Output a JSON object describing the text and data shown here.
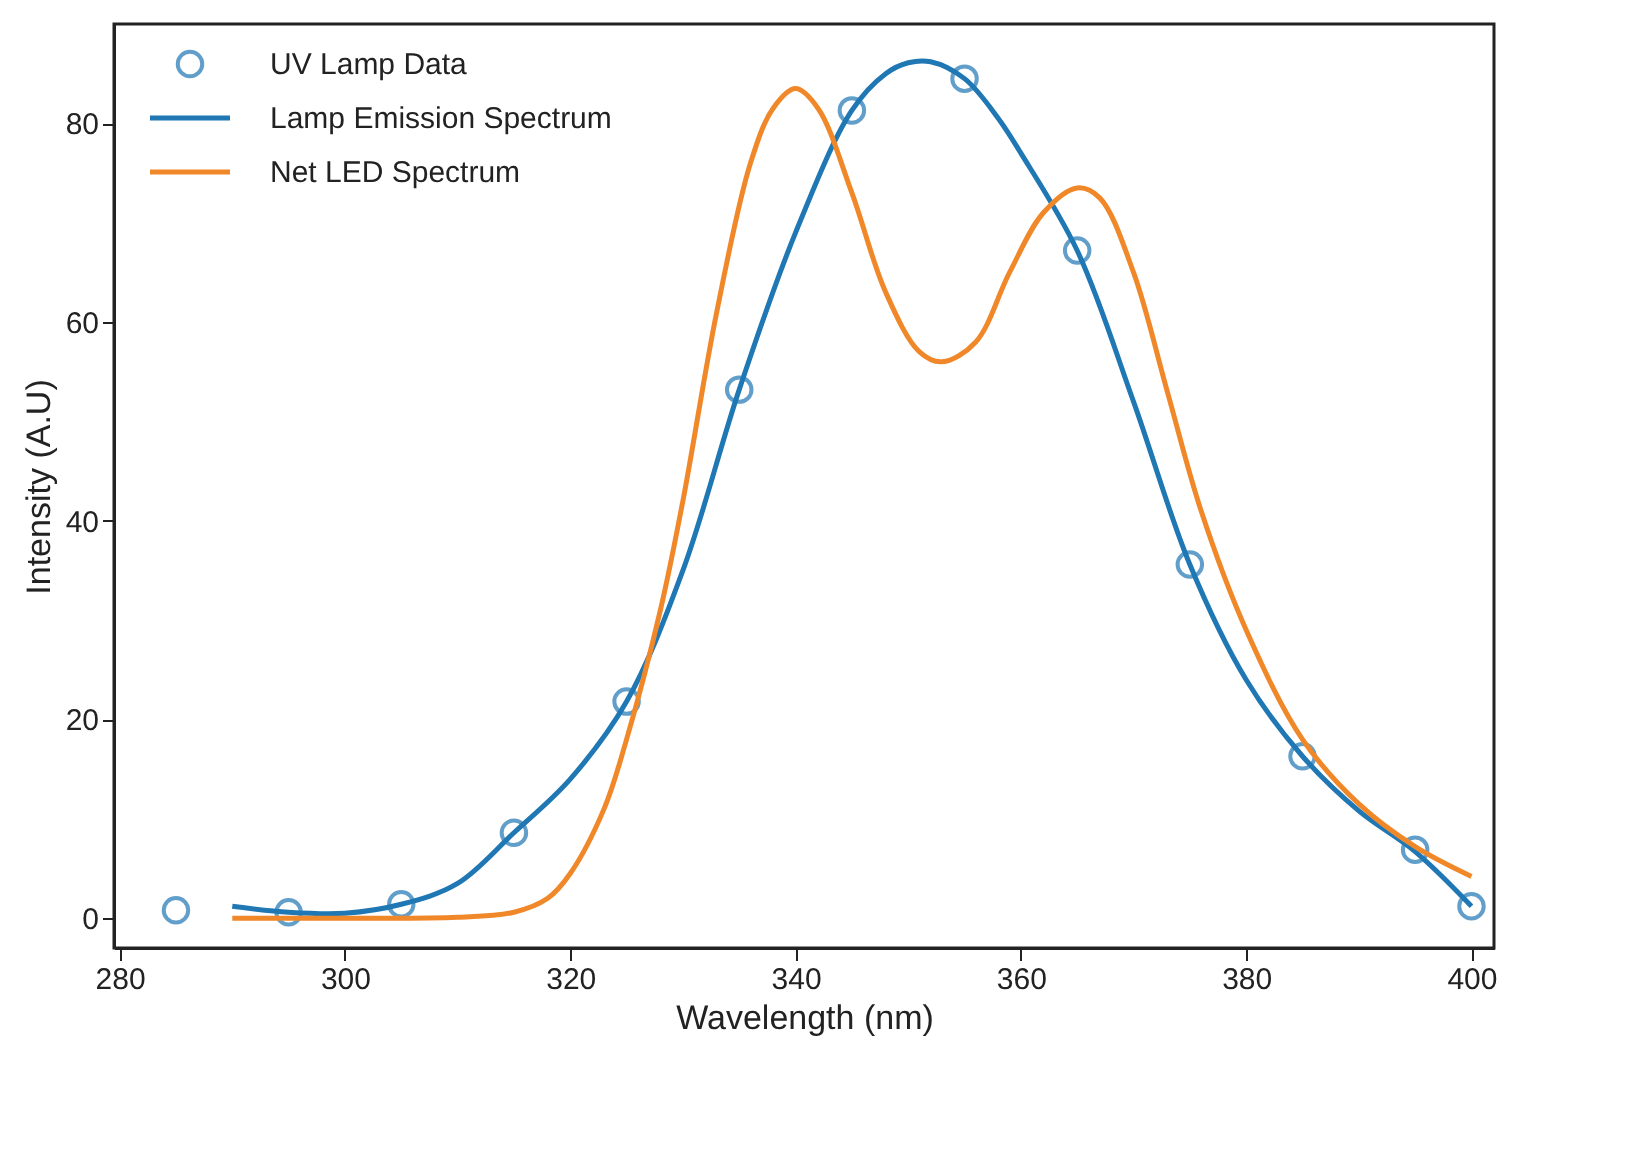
{
  "chart_data": {
    "type": "line",
    "xlabel": "Wavelength (nm)",
    "ylabel": "Intensity (A.U)",
    "xlim": [
      279.5,
      402
    ],
    "xticks": [
      280,
      300,
      320,
      340,
      360,
      380,
      400
    ],
    "ylim": [
      -3,
      90
    ],
    "yticks": [
      0,
      20,
      40,
      60,
      80
    ],
    "grid": false,
    "legend": "top left",
    "line_style": "solid",
    "series": [
      {
        "name": "UV Lamp Data",
        "type": "scatter",
        "marker": "circle",
        "color": "#1f77b4",
        "x": [
          285,
          295,
          305,
          315,
          325,
          335,
          345,
          355,
          365,
          375,
          385,
          395,
          400
        ],
        "values": [
          0.8,
          0.6,
          1.4,
          8.6,
          21.8,
          53.2,
          81.3,
          84.5,
          67.2,
          35.6,
          16.3,
          6.9,
          1.2
        ]
      },
      {
        "name": "Lamp Emission Spectrum",
        "marker": "none",
        "color": "#1f77b4",
        "x": [
          290,
          295,
          300,
          305,
          310,
          315,
          320,
          325,
          330,
          335,
          340,
          345,
          348,
          350,
          352,
          355,
          358,
          360,
          365,
          370,
          375,
          380,
          385,
          390,
          395,
          400
        ],
        "values": [
          1.2,
          0.6,
          0.5,
          1.4,
          3.5,
          8.6,
          14,
          21.8,
          35,
          53.2,
          69,
          81.3,
          85,
          86.1,
          86.2,
          84.5,
          80.5,
          77,
          67.2,
          52,
          35.6,
          24,
          16.3,
          10.8,
          6.7,
          1.2
        ]
      },
      {
        "name": "Net LED Spectrum",
        "marker": "none",
        "color": "#f0882a",
        "x": [
          290,
          300,
          310,
          315,
          318,
          320,
          323,
          325,
          328,
          330,
          333,
          336,
          338,
          340,
          342,
          345,
          348,
          351,
          353,
          356,
          359,
          362,
          365,
          367,
          370,
          373,
          376,
          380,
          385,
          390,
          395,
          400
        ],
        "values": [
          0,
          0,
          0.1,
          0.6,
          2,
          4.5,
          11,
          18,
          31,
          42,
          61,
          76,
          81.5,
          83.5,
          81.5,
          73,
          63,
          57,
          56,
          58,
          65,
          71,
          73.5,
          72.5,
          65,
          53,
          41,
          29,
          18,
          11.5,
          7.2,
          4.2
        ]
      }
    ]
  }
}
